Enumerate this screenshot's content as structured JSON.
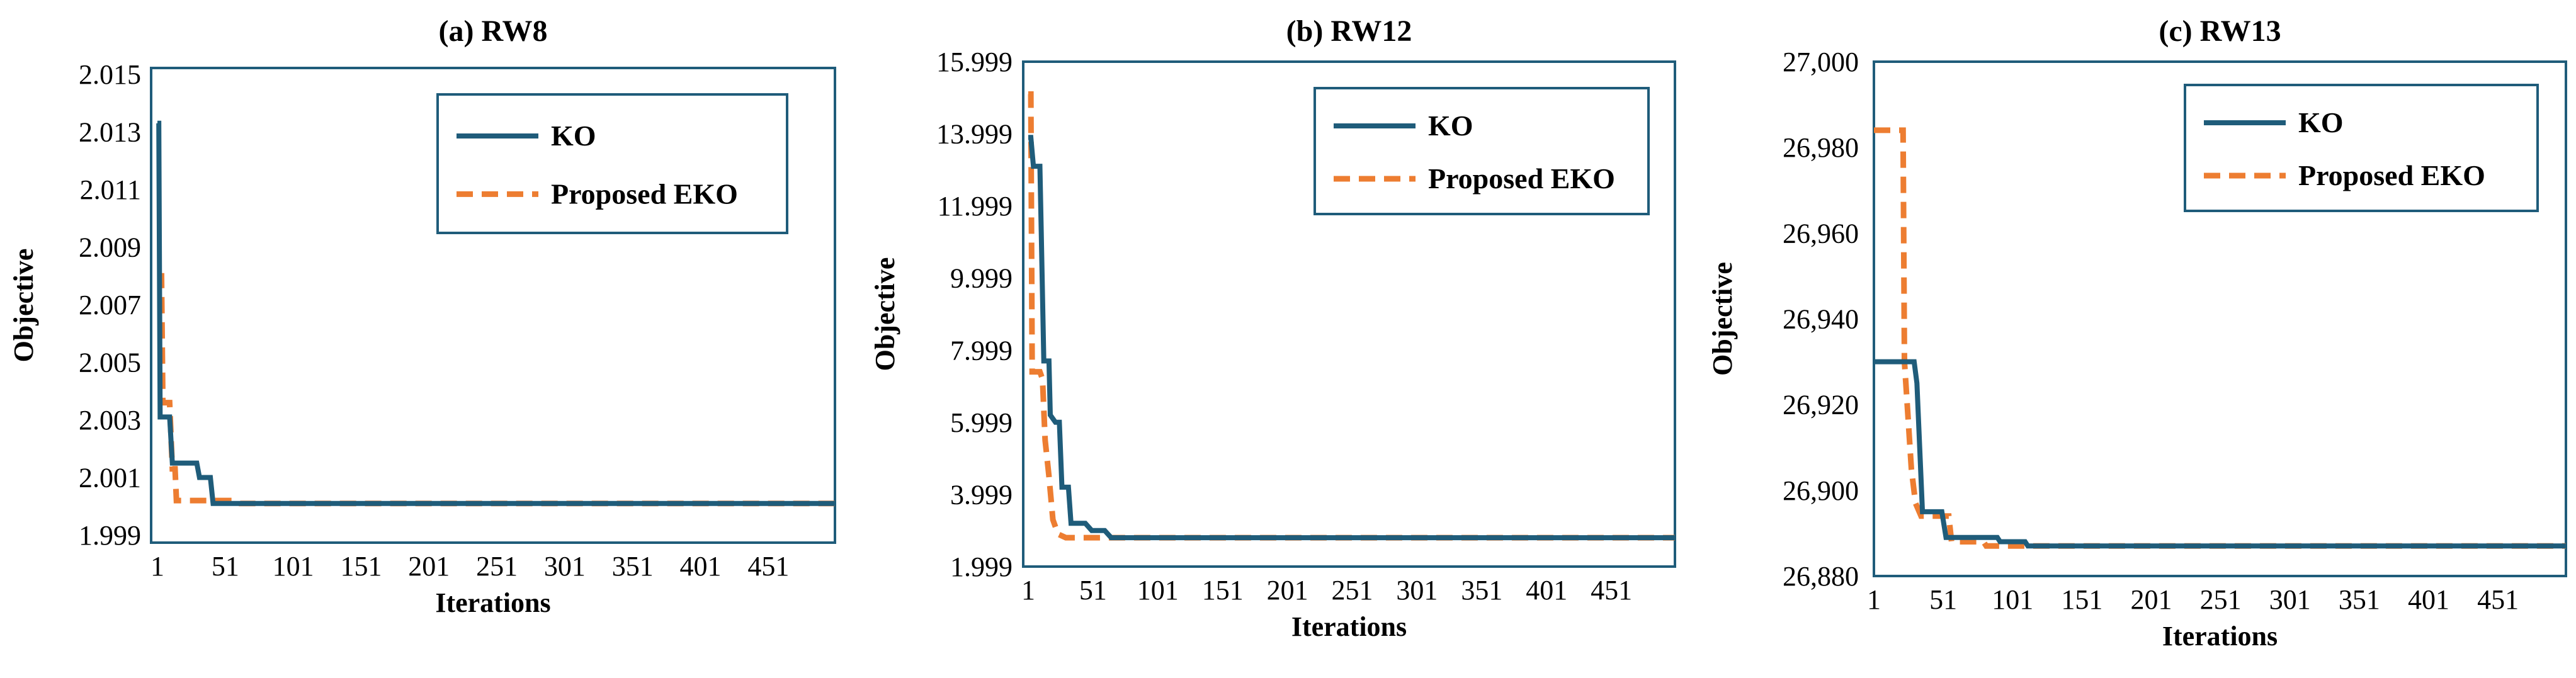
{
  "chart_data": [
    {
      "type": "line",
      "title": "(a) RW8",
      "xlabel": "Iterations",
      "ylabel": "Objective",
      "xlim": [
        1,
        500
      ],
      "ylim": [
        1.999,
        2.015
      ],
      "x_ticks": [
        1,
        51,
        101,
        151,
        201,
        251,
        301,
        351,
        401,
        451
      ],
      "x_tick_labels": [
        "1",
        "51",
        "101",
        "151",
        "201",
        "251",
        "301",
        "351",
        "401",
        "451"
      ],
      "y_ticks": [
        1.999,
        2.001,
        2.003,
        2.005,
        2.007,
        2.009,
        2.011,
        2.013,
        2.015
      ],
      "y_tick_labels": [
        "1.999",
        "2.001",
        "2.003",
        "2.005",
        "2.007",
        "2.009",
        "2.011",
        "2.013",
        "2.015"
      ],
      "legend": "top-right",
      "series": [
        {
          "name": "KO",
          "color": "#1f5c7a",
          "style": "solid",
          "points": [
            [
              1,
              2.0133
            ],
            [
              2,
              2.0133
            ],
            [
              3,
              2.0031
            ],
            [
              10,
              2.0031
            ],
            [
              12,
              2.0015
            ],
            [
              30,
              2.0015
            ],
            [
              32,
              2.001
            ],
            [
              40,
              2.001
            ],
            [
              42,
              2.0001
            ],
            [
              500,
              2.0001
            ]
          ]
        },
        {
          "name": "Proposed EKO",
          "color": "#ed7d31",
          "style": "dashed",
          "points": [
            [
              1,
              2.008
            ],
            [
              4,
              2.008
            ],
            [
              5,
              2.0036
            ],
            [
              10,
              2.0036
            ],
            [
              12,
              2.0013
            ],
            [
              14,
              2.0013
            ],
            [
              15,
              2.0002
            ],
            [
              60,
              2.0002
            ],
            [
              62,
              2.0001
            ],
            [
              500,
              2.0001
            ]
          ]
        }
      ]
    },
    {
      "type": "line",
      "title": "(b) RW12",
      "xlabel": "Iterations",
      "ylabel": "Objective",
      "xlim": [
        1,
        500
      ],
      "ylim": [
        1.999,
        15.999
      ],
      "x_ticks": [
        1,
        51,
        101,
        151,
        201,
        251,
        301,
        351,
        401,
        451
      ],
      "x_tick_labels": [
        "1",
        "51",
        "101",
        "151",
        "201",
        "251",
        "301",
        "351",
        "401",
        "451"
      ],
      "y_ticks": [
        1.999,
        3.999,
        5.999,
        7.999,
        9.999,
        11.999,
        13.999,
        15.999
      ],
      "y_tick_labels": [
        "1.999",
        "3.999",
        "5.999",
        "7.999",
        "9.999",
        "11.999",
        "13.999",
        "15.999"
      ],
      "legend": "top-right",
      "series": [
        {
          "name": "KO",
          "color": "#1f5c7a",
          "style": "solid",
          "points": [
            [
              1,
              13.9
            ],
            [
              3,
              13.9
            ],
            [
              5,
              13.1
            ],
            [
              10,
              13.1
            ],
            [
              11,
              11.3
            ],
            [
              13,
              7.7
            ],
            [
              17,
              7.7
            ],
            [
              18,
              6.2
            ],
            [
              22,
              6.0
            ],
            [
              25,
              6.0
            ],
            [
              27,
              4.2
            ],
            [
              32,
              4.2
            ],
            [
              34,
              3.2
            ],
            [
              45,
              3.2
            ],
            [
              50,
              3.0
            ],
            [
              60,
              3.0
            ],
            [
              65,
              2.8
            ],
            [
              500,
              2.8
            ]
          ]
        },
        {
          "name": "Proposed EKO",
          "color": "#ed7d31",
          "style": "dashed",
          "points": [
            [
              1,
              15.1
            ],
            [
              3,
              15.1
            ],
            [
              4,
              7.4
            ],
            [
              10,
              7.4
            ],
            [
              12,
              7.2
            ],
            [
              14,
              5.5
            ],
            [
              17,
              4.5
            ],
            [
              20,
              3.3
            ],
            [
              24,
              2.9
            ],
            [
              30,
              2.8
            ],
            [
              500,
              2.8
            ]
          ]
        }
      ]
    },
    {
      "type": "line",
      "title": "(c) RW13",
      "xlabel": "Iterations",
      "ylabel": "Objective",
      "xlim": [
        1,
        500
      ],
      "ylim": [
        26880,
        27000
      ],
      "x_ticks": [
        1,
        51,
        101,
        151,
        201,
        251,
        301,
        351,
        401,
        451
      ],
      "x_tick_labels": [
        "1",
        "51",
        "101",
        "151",
        "201",
        "251",
        "301",
        "351",
        "401",
        "451"
      ],
      "y_ticks": [
        26880,
        26900,
        26920,
        26940,
        26960,
        26980,
        27000
      ],
      "y_tick_labels": [
        "26,880",
        "26,900",
        "26,920",
        "26,940",
        "26,960",
        "26,980",
        "27,000"
      ],
      "legend": "top-right",
      "series": [
        {
          "name": "KO",
          "color": "#1f5c7a",
          "style": "solid",
          "points": [
            [
              1,
              26930
            ],
            [
              30,
              26930
            ],
            [
              32,
              26925
            ],
            [
              34,
              26910
            ],
            [
              36,
              26895
            ],
            [
              50,
              26895
            ],
            [
              53,
              26889
            ],
            [
              90,
              26889
            ],
            [
              92,
              26888
            ],
            [
              110,
              26888
            ],
            [
              112,
              26887
            ],
            [
              500,
              26887
            ]
          ]
        },
        {
          "name": "Proposed EKO",
          "color": "#ed7d31",
          "style": "dashed",
          "points": [
            [
              1,
              26984
            ],
            [
              22,
              26984
            ],
            [
              23,
              26930
            ],
            [
              25,
              26920
            ],
            [
              28,
              26905
            ],
            [
              31,
              26897
            ],
            [
              35,
              26894
            ],
            [
              55,
              26894
            ],
            [
              57,
              26888
            ],
            [
              80,
              26888
            ],
            [
              82,
              26887
            ],
            [
              500,
              26887
            ]
          ]
        }
      ]
    }
  ]
}
